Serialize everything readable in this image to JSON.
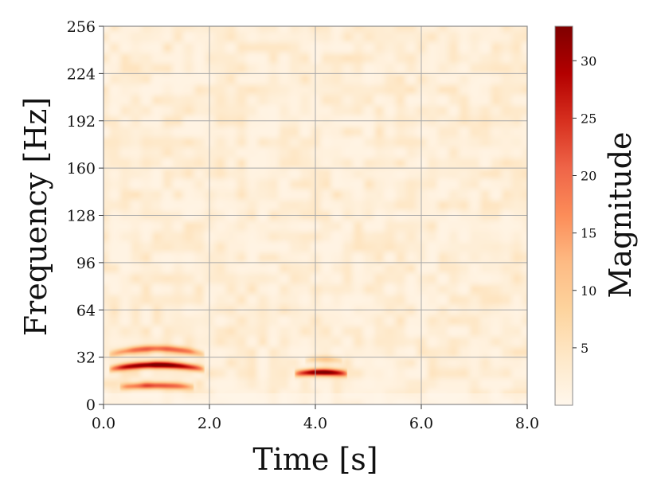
{
  "chart_data": {
    "type": "heatmap",
    "title": "",
    "xlabel": "Time [s]",
    "ylabel": "Frequency [Hz]",
    "colorbar_label": "Magnitude",
    "xlim": [
      0,
      8
    ],
    "ylim": [
      0,
      256
    ],
    "x_ticks": [
      0,
      2,
      4,
      6,
      8
    ],
    "x_tick_labels": [
      "0.0",
      "2.0",
      "4.0",
      "6.0",
      "8.0"
    ],
    "y_ticks": [
      0,
      32,
      64,
      96,
      128,
      160,
      192,
      224,
      256
    ],
    "y_tick_labels": [
      "0",
      "32",
      "64",
      "96",
      "128",
      "160",
      "192",
      "224",
      "256"
    ],
    "colorbar_range": [
      0,
      33
    ],
    "colorbar_ticks": [
      5,
      10,
      15,
      20,
      25,
      30
    ],
    "colorbar_tick_labels": [
      "5",
      "10",
      "15",
      "20",
      "25",
      "30"
    ],
    "colormap": "OrRd",
    "colormap_stops": [
      "#fff7ec",
      "#fee8c8",
      "#fdd49e",
      "#fdbb84",
      "#fc8d59",
      "#ef6548",
      "#d7301f",
      "#b30000",
      "#7f0000"
    ],
    "grid": true,
    "background_noise_magnitude": [
      1,
      5
    ],
    "features": [
      {
        "name": "chirp-fundamental",
        "t_start": 0.1,
        "t_end": 1.9,
        "freq_center": 24,
        "freq_peak": 27,
        "magnitude": 32
      },
      {
        "name": "chirp-upper-harmonic",
        "t_start": 0.1,
        "t_end": 1.9,
        "freq_center": 34,
        "freq_peak": 38,
        "magnitude": 18
      },
      {
        "name": "chirp-lower-band",
        "t_start": 0.3,
        "t_end": 1.7,
        "freq_center": 12,
        "freq_peak": 13,
        "magnitude": 20
      },
      {
        "name": "tone-burst",
        "t_start": 3.6,
        "t_end": 4.6,
        "freq_center": 21,
        "freq_peak": 22,
        "magnitude": 30
      },
      {
        "name": "tone-burst-harmonic",
        "t_start": 3.8,
        "t_end": 4.5,
        "freq_center": 30,
        "freq_peak": 31,
        "magnitude": 7
      }
    ]
  }
}
